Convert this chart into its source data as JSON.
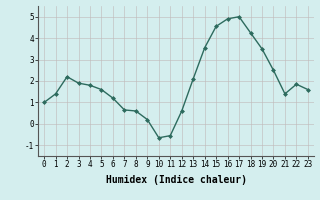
{
  "x": [
    0,
    1,
    2,
    3,
    4,
    5,
    6,
    7,
    8,
    9,
    10,
    11,
    12,
    13,
    14,
    15,
    16,
    17,
    18,
    19,
    20,
    21,
    22,
    23
  ],
  "y": [
    1.0,
    1.4,
    2.2,
    1.9,
    1.8,
    1.6,
    1.2,
    0.65,
    0.6,
    0.2,
    -0.65,
    -0.55,
    0.6,
    2.1,
    3.55,
    4.55,
    4.9,
    5.0,
    4.25,
    3.5,
    2.5,
    1.4,
    1.85,
    1.6
  ],
  "line_color": "#2d6b5e",
  "marker": "D",
  "markersize": 2.0,
  "linewidth": 1.0,
  "background_color": "#d4eeee",
  "grid_color": "#c0b8b8",
  "xlabel": "Humidex (Indice chaleur)",
  "xlabel_fontsize": 7,
  "xlabel_fontweight": "bold",
  "xlim": [
    -0.5,
    23.5
  ],
  "ylim": [
    -1.5,
    5.5
  ],
  "yticks": [
    -1,
    0,
    1,
    2,
    3,
    4,
    5
  ],
  "xticks": [
    0,
    1,
    2,
    3,
    4,
    5,
    6,
    7,
    8,
    9,
    10,
    11,
    12,
    13,
    14,
    15,
    16,
    17,
    18,
    19,
    20,
    21,
    22,
    23
  ],
  "tick_fontsize": 5.5,
  "grid_alpha": 0.8
}
